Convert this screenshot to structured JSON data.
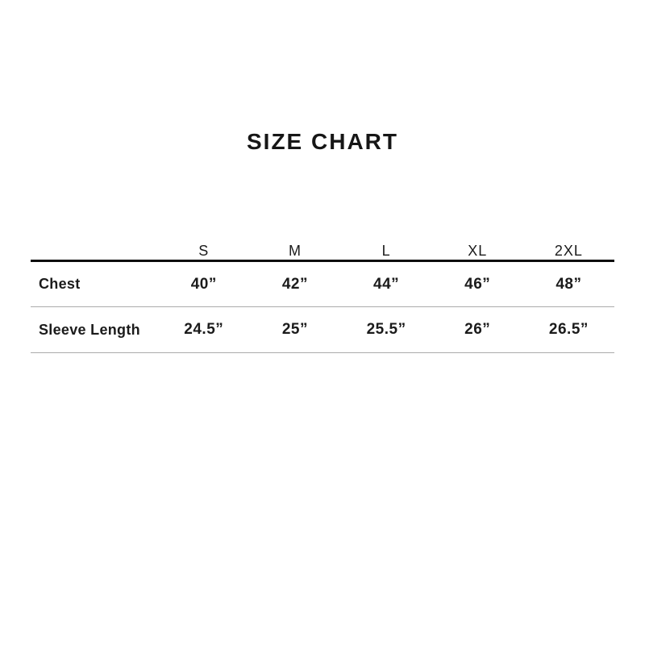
{
  "chart_data": {
    "type": "table",
    "title": "SIZE CHART",
    "columns": [
      "S",
      "M",
      "L",
      "XL",
      "2XL"
    ],
    "rows": [
      {
        "label": "Chest",
        "values": [
          "40”",
          "42”",
          "44”",
          "46”",
          "48”"
        ],
        "values_numeric": [
          40,
          42,
          44,
          46,
          48
        ]
      },
      {
        "label": "Sleeve Length",
        "values": [
          "24.5”",
          "25”",
          "25.5”",
          "26”",
          "26.5”"
        ],
        "values_numeric": [
          24.5,
          25,
          25.5,
          26,
          26.5
        ]
      }
    ]
  },
  "colors": {
    "background": "#ffffff",
    "text": "#1b1b1b",
    "header_rule": "#0e0e0e",
    "row_divider": "#ababab"
  }
}
